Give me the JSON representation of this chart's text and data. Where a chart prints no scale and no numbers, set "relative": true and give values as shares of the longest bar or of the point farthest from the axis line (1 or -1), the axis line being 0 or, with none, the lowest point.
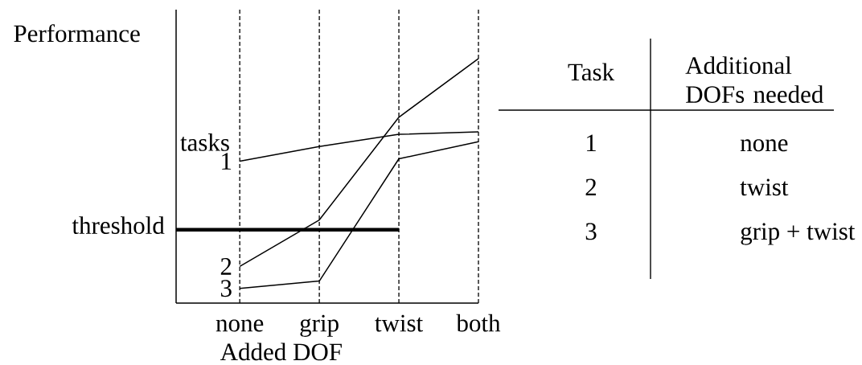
{
  "chart_data": [
    {
      "type": "line",
      "xlabel": "Added DOF",
      "ylabel": "Performance",
      "legend_title": "tasks",
      "categories": [
        "none",
        "grip",
        "twist",
        "both"
      ],
      "relative": true,
      "grid": "x",
      "series": [
        {
          "name": "1",
          "color": "#000000",
          "values": [
            0.58,
            0.64,
            0.69,
            0.7
          ]
        },
        {
          "name": "2",
          "color": "#000000",
          "values": [
            0.15,
            0.34,
            0.76,
            1
          ]
        },
        {
          "name": "3",
          "color": "#000000",
          "values": [
            0.06,
            0.09,
            0.59,
            0.66
          ]
        }
      ],
      "ref_lines": [
        {
          "axis": "y",
          "value": 0.3,
          "label": "threshold",
          "color": "#000000"
        }
      ]
    },
    {
      "type": "other",
      "annotations": [
        "Task",
        "Additional DOFs needed",
        "1",
        "none",
        "2",
        "twist",
        "3",
        "grip + twist"
      ]
    }
  ]
}
